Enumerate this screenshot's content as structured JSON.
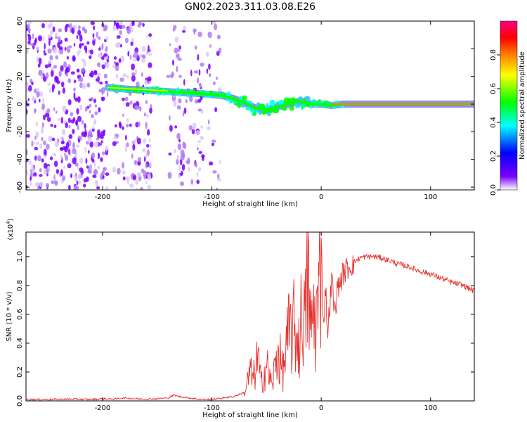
{
  "chart_data": [
    {
      "type": "heatmap",
      "title": "GN02.2023.311.03.08.E26",
      "xlabel": "Height of straight line (km)",
      "ylabel": "Frequency (Hz)",
      "xlim": [
        -270,
        140
      ],
      "ylim": [
        -62,
        60
      ],
      "x_ticks": [
        "-200",
        "-100",
        "0",
        "100"
      ],
      "x_tick_values": [
        -200,
        -100,
        0,
        100
      ],
      "y_ticks": [
        "60",
        "40",
        "20",
        "0",
        "-20",
        "-40",
        "-60"
      ],
      "y_tick_values": [
        60,
        40,
        20,
        0,
        -20,
        -40,
        -60
      ],
      "colorbar": {
        "label": "Normalized spectral amplitude",
        "range": [
          0,
          1
        ],
        "ticks": [
          "0.0",
          "0.2",
          "0.4",
          "0.6",
          "0.8"
        ],
        "tick_values": [
          0.0,
          0.2,
          0.4,
          0.6,
          0.8
        ],
        "colormap": [
          "#ffffff",
          "#7a00ff",
          "#0000ff",
          "#00ffff",
          "#00ff00",
          "#ffff00",
          "#ff8000",
          "#ff0000",
          "#ff0080"
        ]
      },
      "ridge": {
        "x": [
          -195,
          -180,
          -160,
          -140,
          -120,
          -100,
          -90,
          -80,
          -70,
          -60,
          -50,
          -40,
          -30,
          -20,
          -10,
          0,
          10,
          20,
          140
        ],
        "frequency_hz": [
          12,
          11,
          10,
          9,
          8,
          7,
          6,
          4,
          1,
          -3,
          -4,
          -2,
          0,
          2,
          0,
          0,
          -1,
          0,
          0
        ]
      },
      "noise_bands_x": [
        [
          -270,
          -195
        ],
        [
          -190,
          -155
        ],
        [
          -140,
          -108
        ],
        [
          -105,
          -92
        ]
      ]
    },
    {
      "type": "line",
      "xlabel": "Height of straight line (km)",
      "ylabel": "SNR (10 * v/v)",
      "y_multiplier": "(x10^4)",
      "multiplier_base": "(x10",
      "multiplier_exp": "4",
      "multiplier_close": ")",
      "color": "#e8312d",
      "xlim": [
        -270,
        140
      ],
      "ylim": [
        0,
        1.17
      ],
      "x_ticks": [
        "-200",
        "-100",
        "0",
        "100"
      ],
      "x_tick_values": [
        -200,
        -100,
        0,
        100
      ],
      "y_ticks": [
        "0.0",
        "0.2",
        "0.4",
        "0.6",
        "0.8",
        "1.0"
      ],
      "y_tick_values": [
        0.0,
        0.2,
        0.4,
        0.6,
        0.8,
        1.0
      ],
      "x": [
        -270,
        -250,
        -230,
        -210,
        -200,
        -190,
        -180,
        -170,
        -160,
        -150,
        -140,
        -135,
        -130,
        -120,
        -110,
        -100,
        -90,
        -80,
        -70,
        -65,
        -62,
        -58,
        -55,
        -50,
        -45,
        -40,
        -35,
        -30,
        -25,
        -20,
        -17,
        -15,
        -12,
        -10,
        -8,
        -5,
        -2,
        0,
        2,
        4,
        6,
        8,
        10,
        12,
        15,
        20,
        25,
        30,
        35,
        40,
        50,
        60,
        70,
        80,
        90,
        100,
        110,
        120,
        130,
        140
      ],
      "y": [
        0.01,
        0.01,
        0.012,
        0.01,
        0.015,
        0.012,
        0.02,
        0.015,
        0.012,
        0.015,
        0.02,
        0.04,
        0.03,
        0.02,
        0.01,
        0.01,
        0.02,
        0.03,
        0.06,
        0.2,
        0.15,
        0.3,
        0.12,
        0.25,
        0.1,
        0.35,
        0.2,
        0.45,
        0.5,
        0.4,
        0.7,
        0.5,
        0.9,
        0.45,
        0.6,
        0.55,
        0.7,
        1.17,
        0.5,
        0.8,
        0.45,
        0.7,
        0.85,
        0.6,
        0.78,
        0.88,
        0.93,
        0.96,
        0.99,
        1.0,
        1.0,
        0.98,
        0.95,
        0.93,
        0.9,
        0.88,
        0.85,
        0.82,
        0.8,
        0.76
      ]
    }
  ]
}
